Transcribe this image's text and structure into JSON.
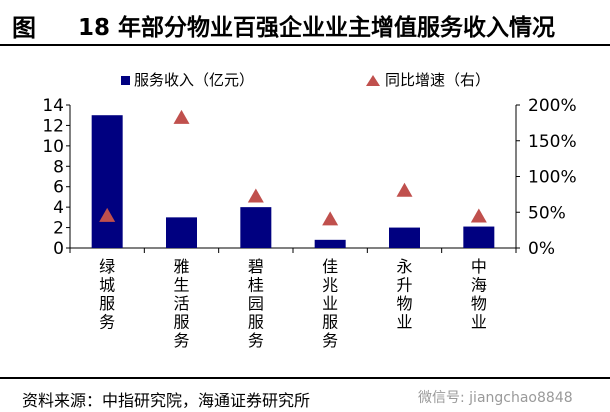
{
  "header": {
    "figure_label": "图",
    "title": "18 年部分物业百强企业业主增值服务收入情况"
  },
  "footer": {
    "source": "资料来源：中指研究院，海通证券研究所",
    "watermark": "微信号: jiangchao8848"
  },
  "colors": {
    "bar": "#000080",
    "marker": "#c0504d",
    "axis": "#000000"
  },
  "chart_data": {
    "type": "bar",
    "categories": [
      "绿城服务",
      "雅生活服务",
      "碧桂园服务",
      "佳兆业服务",
      "永升物业",
      "中海物业"
    ],
    "series": [
      {
        "name": "服务收入（亿元）",
        "type": "bar",
        "axis": "left",
        "values": [
          13.0,
          3.0,
          4.0,
          0.8,
          2.0,
          2.1
        ]
      },
      {
        "name": "同比增速（右）",
        "type": "scatter",
        "marker": "triangle",
        "axis": "right",
        "values": [
          45,
          182,
          72,
          40,
          80,
          44
        ]
      }
    ],
    "ylim_left": [
      0,
      14
    ],
    "yticks_left": [
      "0",
      "2",
      "4",
      "6",
      "8",
      "10",
      "12",
      "14"
    ],
    "ylim_right": [
      0,
      200
    ],
    "yticks_right": [
      "0%",
      "50%",
      "100%",
      "150%",
      "200%"
    ],
    "legend_position": "top",
    "grid": false
  }
}
